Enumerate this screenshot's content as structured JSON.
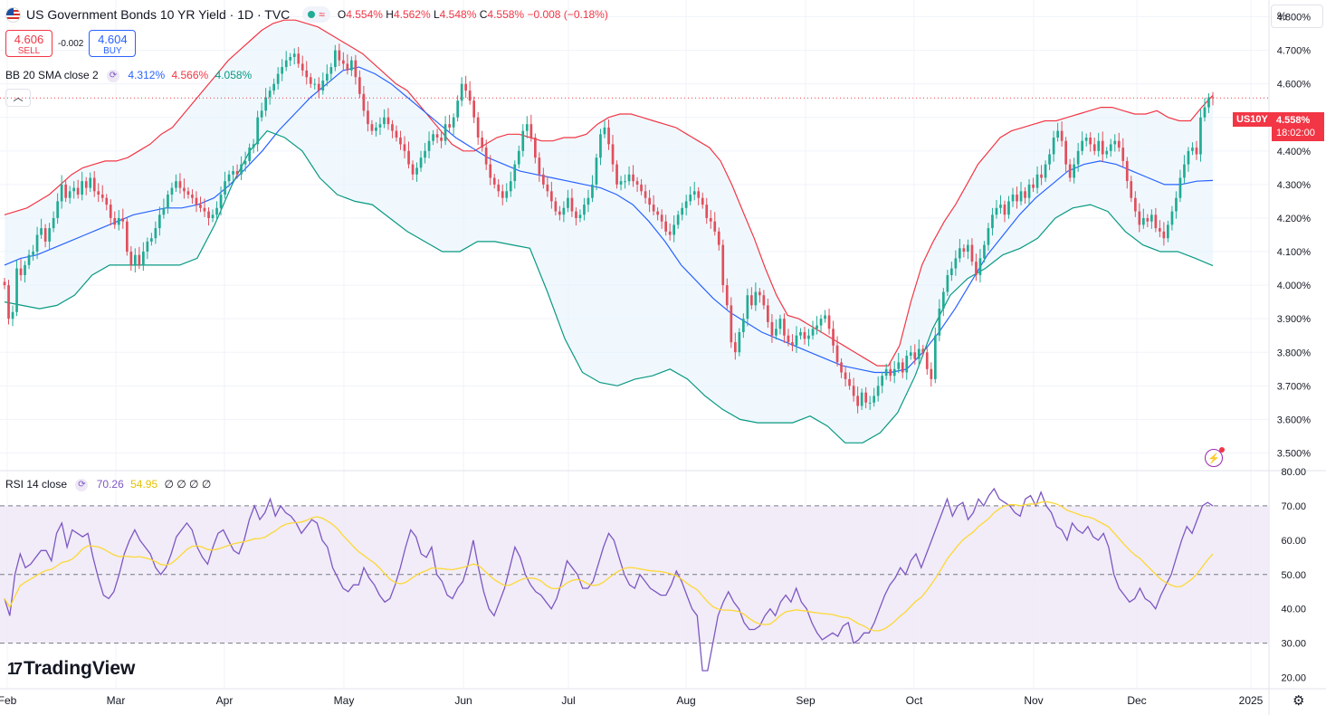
{
  "header": {
    "title": "US Government Bonds 10 YR Yield · 1D · TVC",
    "ohlc": {
      "o_label": "O",
      "o": "4.554%",
      "h_label": "H",
      "h": "4.562%",
      "l_label": "L",
      "l": "4.548%",
      "c_label": "C",
      "c": "4.558%",
      "chg": "−0.008 (−0.18%)"
    },
    "sell_price": "4.606",
    "sell_label": "SELL",
    "spread": "-0.002",
    "buy_price": "4.604",
    "buy_label": "BUY",
    "percent_button": "%"
  },
  "indicators": {
    "bb": {
      "label": "BB 20 SMA close 2",
      "basis": "4.312%",
      "upper": "4.566%",
      "lower": "4.058%"
    },
    "rsi": {
      "label": "RSI 14 close",
      "value": "70.26",
      "ma": "54.95",
      "extra": "∅ ∅ ∅ ∅"
    }
  },
  "price_tag": {
    "symbol": "US10Y",
    "price": "4.558%",
    "countdown": "18:02:00"
  },
  "branding": {
    "logo_text": "TradingView",
    "logo_mark": "17"
  },
  "colors": {
    "up": "#22ab94",
    "down": "#e04f5c",
    "bb_basis": "#2962ff",
    "bb_upper": "#f23645",
    "bb_lower": "#089981",
    "bb_fill": "#e3f2fd",
    "rsi_line": "#7e57c2",
    "rsi_ma": "#fdd835",
    "rsi_band": "#ede7f6"
  },
  "chart_data": {
    "type": "candlestick",
    "title": "US Government Bonds 10 YR Yield · 1D · TVC",
    "price_axis_ticks": [
      "4.800%",
      "4.700%",
      "4.600%",
      "4.500%",
      "4.400%",
      "4.300%",
      "4.200%",
      "4.100%",
      "4.000%",
      "3.900%",
      "3.800%",
      "3.700%",
      "3.600%",
      "3.500%"
    ],
    "rsi_axis_ticks": [
      "80.00",
      "70.00",
      "60.00",
      "50.00",
      "40.00",
      "30.00",
      "20.00"
    ],
    "time_axis_ticks": [
      "Feb",
      "Mar",
      "Apr",
      "May",
      "Jun",
      "Jul",
      "Aug",
      "Sep",
      "Oct",
      "Nov",
      "Dec",
      "2025"
    ],
    "price_ylim": [
      3.45,
      4.85
    ],
    "rsi_ylim": [
      17,
      80
    ],
    "rsi_levels": [
      70,
      50,
      30
    ],
    "last_price": 4.558,
    "close": [
      4.0,
      3.9,
      3.92,
      4.05,
      4.03,
      4.06,
      4.09,
      4.1,
      4.15,
      4.17,
      4.13,
      4.17,
      4.2,
      4.25,
      4.3,
      4.26,
      4.28,
      4.29,
      4.27,
      4.31,
      4.29,
      4.32,
      4.28,
      4.27,
      4.26,
      4.24,
      4.2,
      4.18,
      4.2,
      4.19,
      4.1,
      4.06,
      4.09,
      4.06,
      4.1,
      4.13,
      4.14,
      4.17,
      4.21,
      4.23,
      4.27,
      4.29,
      4.31,
      4.29,
      4.28,
      4.27,
      4.26,
      4.24,
      4.23,
      4.22,
      4.2,
      4.21,
      4.23,
      4.27,
      4.31,
      4.33,
      4.34,
      4.33,
      4.36,
      4.37,
      4.41,
      4.42,
      4.5,
      4.52,
      4.56,
      4.58,
      4.6,
      4.63,
      4.65,
      4.67,
      4.68,
      4.69,
      4.66,
      4.64,
      4.62,
      4.6,
      4.6,
      4.58,
      4.61,
      4.63,
      4.65,
      4.7,
      4.67,
      4.66,
      4.64,
      4.67,
      4.62,
      4.57,
      4.52,
      4.48,
      4.46,
      4.47,
      4.48,
      4.5,
      4.48,
      4.46,
      4.44,
      4.42,
      4.4,
      4.36,
      4.33,
      4.35,
      4.38,
      4.4,
      4.43,
      4.45,
      4.44,
      4.43,
      4.48,
      4.47,
      4.5,
      4.55,
      4.6,
      4.58,
      4.55,
      4.5,
      4.44,
      4.41,
      4.36,
      4.32,
      4.3,
      4.28,
      4.26,
      4.28,
      4.31,
      4.36,
      4.4,
      4.46,
      4.48,
      4.44,
      4.38,
      4.33,
      4.3,
      4.28,
      4.25,
      4.22,
      4.21,
      4.23,
      4.26,
      4.22,
      4.2,
      4.21,
      4.24,
      4.26,
      4.3,
      4.38,
      4.45,
      4.47,
      4.42,
      4.36,
      4.3,
      4.31,
      4.31,
      4.33,
      4.31,
      4.3,
      4.28,
      4.26,
      4.24,
      4.22,
      4.21,
      4.19,
      4.16,
      4.15,
      4.18,
      4.21,
      4.23,
      4.25,
      4.27,
      4.28,
      4.26,
      4.24,
      4.2,
      4.19,
      4.16,
      4.12,
      4.0,
      3.94,
      3.83,
      3.8,
      3.86,
      3.9,
      3.97,
      3.94,
      3.98,
      3.97,
      3.94,
      3.89,
      3.85,
      3.87,
      3.9,
      3.85,
      3.83,
      3.82,
      3.85,
      3.86,
      3.84,
      3.85,
      3.87,
      3.88,
      3.9,
      3.91,
      3.87,
      3.82,
      3.77,
      3.74,
      3.72,
      3.7,
      3.67,
      3.64,
      3.68,
      3.65,
      3.65,
      3.67,
      3.7,
      3.73,
      3.75,
      3.73,
      3.75,
      3.77,
      3.74,
      3.79,
      3.8,
      3.78,
      3.81,
      3.8,
      3.75,
      3.72,
      3.85,
      3.93,
      3.98,
      4.03,
      4.05,
      4.08,
      4.11,
      4.1,
      4.12,
      4.07,
      4.03,
      4.08,
      4.12,
      4.17,
      4.21,
      4.23,
      4.24,
      4.21,
      4.25,
      4.27,
      4.25,
      4.28,
      4.26,
      4.3,
      4.29,
      4.33,
      4.32,
      4.36,
      4.39,
      4.44,
      4.46,
      4.43,
      4.36,
      4.32,
      4.36,
      4.4,
      4.43,
      4.44,
      4.42,
      4.4,
      4.43,
      4.39,
      4.4,
      4.42,
      4.43,
      4.41,
      4.37,
      4.31,
      4.26,
      4.22,
      4.18,
      4.2,
      4.19,
      4.21,
      4.17,
      4.16,
      4.14,
      4.18,
      4.22,
      4.26,
      4.32,
      4.36,
      4.4,
      4.41,
      4.39,
      4.5,
      4.53,
      4.56,
      4.558
    ],
    "bb_upper": [
      4.21,
      4.22,
      4.23,
      4.25,
      4.27,
      4.3,
      4.33,
      4.35,
      4.36,
      4.37,
      4.37,
      4.38,
      4.4,
      4.42,
      4.45,
      4.47,
      4.51,
      4.55,
      4.59,
      4.63,
      4.67,
      4.7,
      4.73,
      4.76,
      4.78,
      4.79,
      4.79,
      4.78,
      4.77,
      4.75,
      4.73,
      4.71,
      4.69,
      4.66,
      4.63,
      4.6,
      4.58,
      4.54,
      4.5,
      4.46,
      4.42,
      4.4,
      4.4,
      4.42,
      4.44,
      4.45,
      4.45,
      4.44,
      4.43,
      4.43,
      4.44,
      4.44,
      4.45,
      4.48,
      4.5,
      4.51,
      4.51,
      4.5,
      4.49,
      4.48,
      4.47,
      4.45,
      4.43,
      4.41,
      4.37,
      4.3,
      4.22,
      4.14,
      4.05,
      3.97,
      3.91,
      3.9,
      3.88,
      3.86,
      3.84,
      3.82,
      3.8,
      3.78,
      3.76,
      3.76,
      3.82,
      3.95,
      4.06,
      4.13,
      4.19,
      4.24,
      4.3,
      4.36,
      4.4,
      4.44,
      4.46,
      4.47,
      4.48,
      4.49,
      4.49,
      4.5,
      4.51,
      4.52,
      4.53,
      4.53,
      4.52,
      4.51,
      4.51,
      4.52,
      4.5,
      4.49,
      4.49,
      4.53,
      4.566
    ],
    "bb_basis": [
      4.06,
      4.08,
      4.09,
      4.11,
      4.13,
      4.15,
      4.17,
      4.19,
      4.21,
      4.22,
      4.23,
      4.23,
      4.24,
      4.26,
      4.3,
      4.35,
      4.4,
      4.46,
      4.51,
      4.56,
      4.6,
      4.64,
      4.65,
      4.63,
      4.6,
      4.56,
      4.52,
      4.48,
      4.44,
      4.41,
      4.38,
      4.36,
      4.34,
      4.33,
      4.32,
      4.31,
      4.3,
      4.29,
      4.27,
      4.24,
      4.19,
      4.13,
      4.06,
      4.01,
      3.96,
      3.92,
      3.89,
      3.86,
      3.84,
      3.82,
      3.8,
      3.78,
      3.76,
      3.75,
      3.74,
      3.74,
      3.75,
      3.8,
      3.86,
      3.93,
      4.01,
      4.09,
      4.15,
      4.21,
      4.26,
      4.3,
      4.34,
      4.36,
      4.37,
      4.36,
      4.34,
      4.32,
      4.3,
      4.3,
      4.31,
      4.312
    ],
    "bb_lower": [
      3.95,
      3.94,
      3.93,
      3.94,
      3.97,
      4.03,
      4.06,
      4.06,
      4.06,
      4.06,
      4.06,
      4.08,
      4.18,
      4.3,
      4.4,
      4.46,
      4.44,
      4.4,
      4.32,
      4.27,
      4.25,
      4.24,
      4.2,
      4.16,
      4.13,
      4.1,
      4.1,
      4.13,
      4.13,
      4.12,
      4.11,
      3.98,
      3.84,
      3.74,
      3.71,
      3.7,
      3.72,
      3.73,
      3.75,
      3.72,
      3.67,
      3.63,
      3.6,
      3.59,
      3.59,
      3.59,
      3.61,
      3.58,
      3.53,
      3.53,
      3.56,
      3.62,
      3.73,
      3.87,
      3.97,
      4.02,
      4.05,
      4.09,
      4.11,
      4.14,
      4.2,
      4.23,
      4.24,
      4.22,
      4.16,
      4.12,
      4.1,
      4.1,
      4.08,
      4.058
    ],
    "rsi": [
      43,
      38,
      50,
      56,
      52,
      53,
      55,
      57,
      57,
      54,
      62,
      65,
      58,
      63,
      62,
      61,
      62,
      55,
      49,
      44,
      43,
      45,
      50,
      56,
      60,
      63,
      60,
      58,
      56,
      52,
      50,
      52,
      56,
      61,
      63,
      65,
      63,
      58,
      55,
      53,
      58,
      62,
      63,
      60,
      57,
      56,
      60,
      66,
      70,
      66,
      68,
      72,
      67,
      70,
      68,
      67,
      65,
      62,
      64,
      66,
      65,
      60,
      58,
      52,
      49,
      46,
      45,
      47,
      47,
      52,
      49,
      47,
      44,
      42,
      43,
      47,
      52,
      58,
      63,
      61,
      56,
      55,
      58,
      50,
      48,
      44,
      43,
      46,
      48,
      53,
      60,
      52,
      45,
      40,
      38,
      42,
      46,
      52,
      58,
      55,
      50,
      47,
      45,
      44,
      42,
      40,
      43,
      48,
      54,
      52,
      50,
      46,
      46,
      48,
      53,
      58,
      62,
      60,
      55,
      50,
      47,
      46,
      50,
      48,
      46,
      45,
      44,
      44,
      47,
      51,
      48,
      44,
      40,
      38,
      22,
      22,
      30,
      38,
      42,
      45,
      42,
      40,
      36,
      34,
      34,
      35,
      38,
      40,
      38,
      42,
      44,
      42,
      46,
      42,
      40,
      36,
      33,
      31,
      32,
      33,
      32,
      35,
      36,
      30,
      31,
      33,
      33,
      36,
      40,
      44,
      47,
      49,
      52,
      50,
      54,
      56,
      52,
      56,
      60,
      64,
      68,
      72,
      67,
      70,
      71,
      66,
      68,
      72,
      70,
      73,
      75,
      72,
      71,
      70,
      68,
      67,
      72,
      73,
      70,
      74,
      70,
      68,
      64,
      63,
      60,
      65,
      63,
      62,
      64,
      61,
      60,
      62,
      58,
      50,
      46,
      44,
      42,
      43,
      46,
      43,
      42,
      40,
      44,
      47,
      50,
      55,
      60,
      64,
      62,
      66,
      70,
      71,
      70
    ]
  }
}
